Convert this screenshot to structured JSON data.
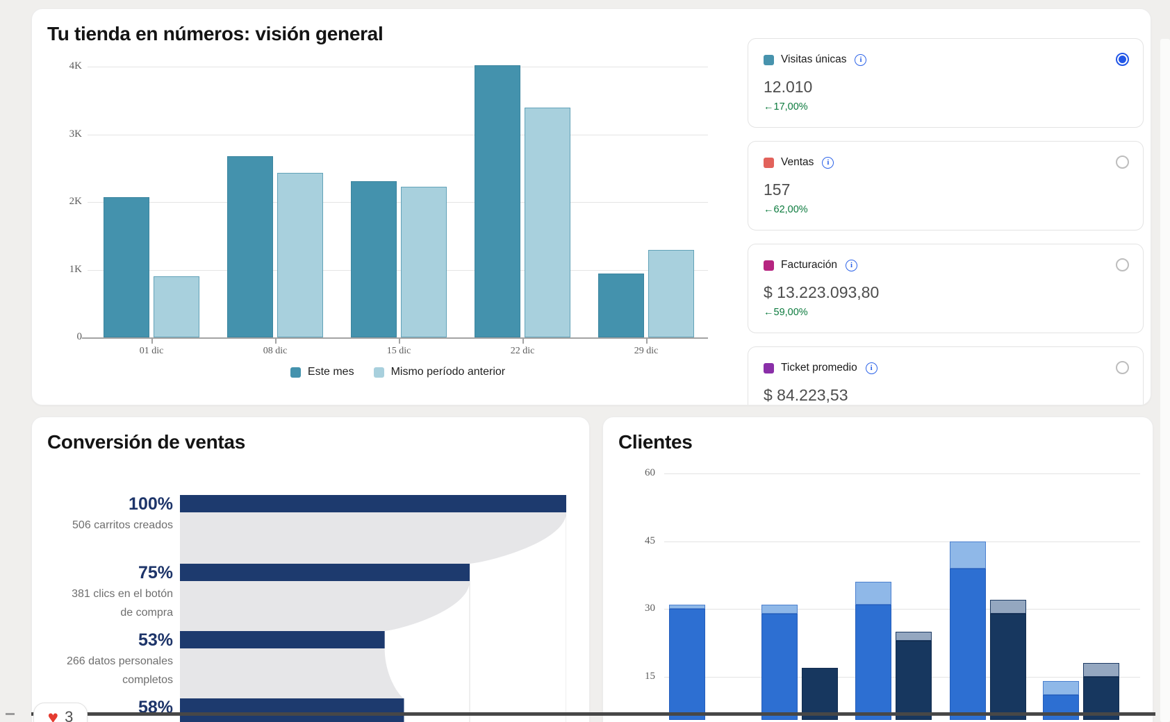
{
  "overview": {
    "chart_data": {
      "type": "bar",
      "title": "Tu tienda en números: visión general",
      "categories": [
        "01 dic",
        "08 dic",
        "15 dic",
        "22 dic",
        "29 dic"
      ],
      "series": [
        {
          "name": "Este mes",
          "color": "#4492ad",
          "border": "#3a849e",
          "values": [
            2070,
            2680,
            2310,
            4020,
            940
          ]
        },
        {
          "name": "Mismo período anterior",
          "color": "#a8d0dd",
          "border": "#62a2b8",
          "values": [
            900,
            2430,
            2230,
            3400,
            1290
          ]
        }
      ],
      "yticks": [
        {
          "value": 4000,
          "label": "4K"
        },
        {
          "value": 3000,
          "label": "3K"
        },
        {
          "value": 2000,
          "label": "2K"
        },
        {
          "value": 1000,
          "label": "1K"
        },
        {
          "value": 0,
          "label": "0"
        }
      ],
      "ylim": [
        0,
        4150
      ],
      "grid": "horizontal",
      "legend_position": "bottom"
    },
    "metrics": [
      {
        "label": "Visitas únicas",
        "swatch_color": "#4793ad",
        "info_icon": "i",
        "value": "12.010",
        "change": "←17,00%",
        "selected": true
      },
      {
        "label": "Ventas",
        "swatch_color": "#e2625b",
        "info_icon": "i",
        "value": "157",
        "change": "←62,00%",
        "selected": false
      },
      {
        "label": "Facturación",
        "swatch_color": "#b62580",
        "info_icon": "i",
        "value": "$ 13.223.093,80",
        "change": "←59,00%",
        "selected": false
      },
      {
        "label": "Ticket promedio",
        "swatch_color": "#8a2fa8",
        "info_icon": "i",
        "value": "$ 84.223,53",
        "change": "",
        "selected": false
      }
    ],
    "change_color": "#0b7a3d"
  },
  "funnel": {
    "chart_data": {
      "type": "funnel",
      "title": "Conversión de ventas",
      "bar_color": "#1d3a6e",
      "shade_color": "#e6e6e8",
      "steps": [
        {
          "percent": "100%",
          "value_pct": 100,
          "caption_lines": [
            "506 carritos creados"
          ]
        },
        {
          "percent": "75%",
          "value_pct": 75,
          "caption_lines": [
            "381 clics en el botón",
            "de compra"
          ]
        },
        {
          "percent": "53%",
          "value_pct": 53,
          "caption_lines": [
            "266 datos personales",
            "completos"
          ]
        },
        {
          "percent": "58%",
          "value_pct": 58,
          "caption_lines": []
        }
      ],
      "gridlines_pct": [
        25,
        50,
        75,
        100
      ]
    }
  },
  "clientes": {
    "chart_data": {
      "type": "stacked-bar",
      "title": "Clientes",
      "yticks": [
        {
          "value": 60,
          "label": "60"
        },
        {
          "value": 45,
          "label": "45"
        },
        {
          "value": 30,
          "label": "30"
        },
        {
          "value": 15,
          "label": "15"
        }
      ],
      "ylim": [
        0,
        63
      ],
      "categories": [
        "",
        "",
        "",
        "",
        ""
      ],
      "colors": {
        "primary_base": "#2d6fd2",
        "primary_border": "#245dbb",
        "primary_cap": "#8fb8e8",
        "primary_cap_border": "#4a7fce",
        "secondary_base": "#17375f",
        "secondary_border": "#122c4e",
        "secondary_cap": "#94a7c0",
        "secondary_cap_border": "#1c3a63"
      },
      "groups": [
        {
          "primary": {
            "base": 30,
            "total": 31
          },
          "secondary": null
        },
        {
          "primary": {
            "base": 29,
            "total": 31
          },
          "secondary": {
            "base": 17,
            "total": 17
          }
        },
        {
          "primary": {
            "base": 31,
            "total": 36
          },
          "secondary": {
            "base": 23,
            "total": 25
          }
        },
        {
          "primary": {
            "base": 39,
            "total": 45
          },
          "secondary": {
            "base": 29,
            "total": 32
          }
        },
        {
          "primary": {
            "base": 11,
            "total": 14
          },
          "secondary": {
            "base": 15,
            "total": 18
          }
        }
      ]
    }
  },
  "reaction": {
    "heart_icon": "♥",
    "count": "3"
  }
}
